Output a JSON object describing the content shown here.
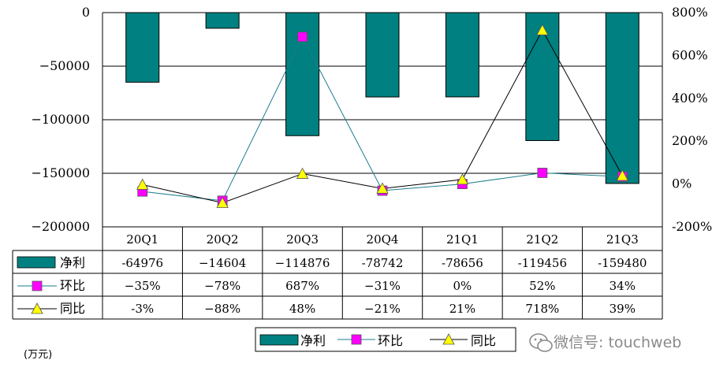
{
  "chart_data": {
    "type": "bar",
    "categories": [
      "20Q1",
      "20Q2",
      "20Q3",
      "20Q4",
      "21Q1",
      "21Q2",
      "21Q3"
    ],
    "series": [
      {
        "name": "净利",
        "kind": "bar",
        "axis": "left",
        "values": [
          -64976,
          -14604,
          -114876,
          -78742,
          -78656,
          -119456,
          -159480
        ],
        "labels": [
          "-64976",
          "−14604",
          "−114876",
          "-78742",
          "-78656",
          "-119456",
          "-159480"
        ],
        "color": "#008080"
      },
      {
        "name": "环比",
        "kind": "line",
        "axis": "right",
        "marker": "square",
        "values": [
          -35,
          -78,
          687,
          -31,
          0,
          52,
          34
        ],
        "labels": [
          "−35%",
          "−78%",
          "687%",
          "−31%",
          "0%",
          "52%",
          "34%"
        ],
        "color": "#ff00ff",
        "line_color": "#1a7d8c"
      },
      {
        "name": "同比",
        "kind": "line",
        "axis": "right",
        "marker": "triangle",
        "values": [
          -3,
          -88,
          48,
          -21,
          21,
          718,
          39
        ],
        "labels": [
          "-3%",
          "−88%",
          "48%",
          "−21%",
          "21%",
          "718%",
          "39%"
        ],
        "color": "#ffff00",
        "line_color": "#000000"
      }
    ],
    "y_left": {
      "range": [
        -200000,
        0
      ],
      "ticks": [
        "0",
        "−50000",
        "−100000",
        "−150000",
        "−200000"
      ]
    },
    "y_right": {
      "range": [
        -200,
        800
      ],
      "ticks": [
        "800%",
        "600%",
        "400%",
        "200%",
        "0%",
        "-200%"
      ]
    },
    "grid": "horizontal",
    "data_table": true,
    "legend_position": "bottom",
    "unit_label": "(万元)"
  },
  "watermark": "微信号: touchweb",
  "colors": {
    "bar": "#008080",
    "grid": "#000000"
  }
}
